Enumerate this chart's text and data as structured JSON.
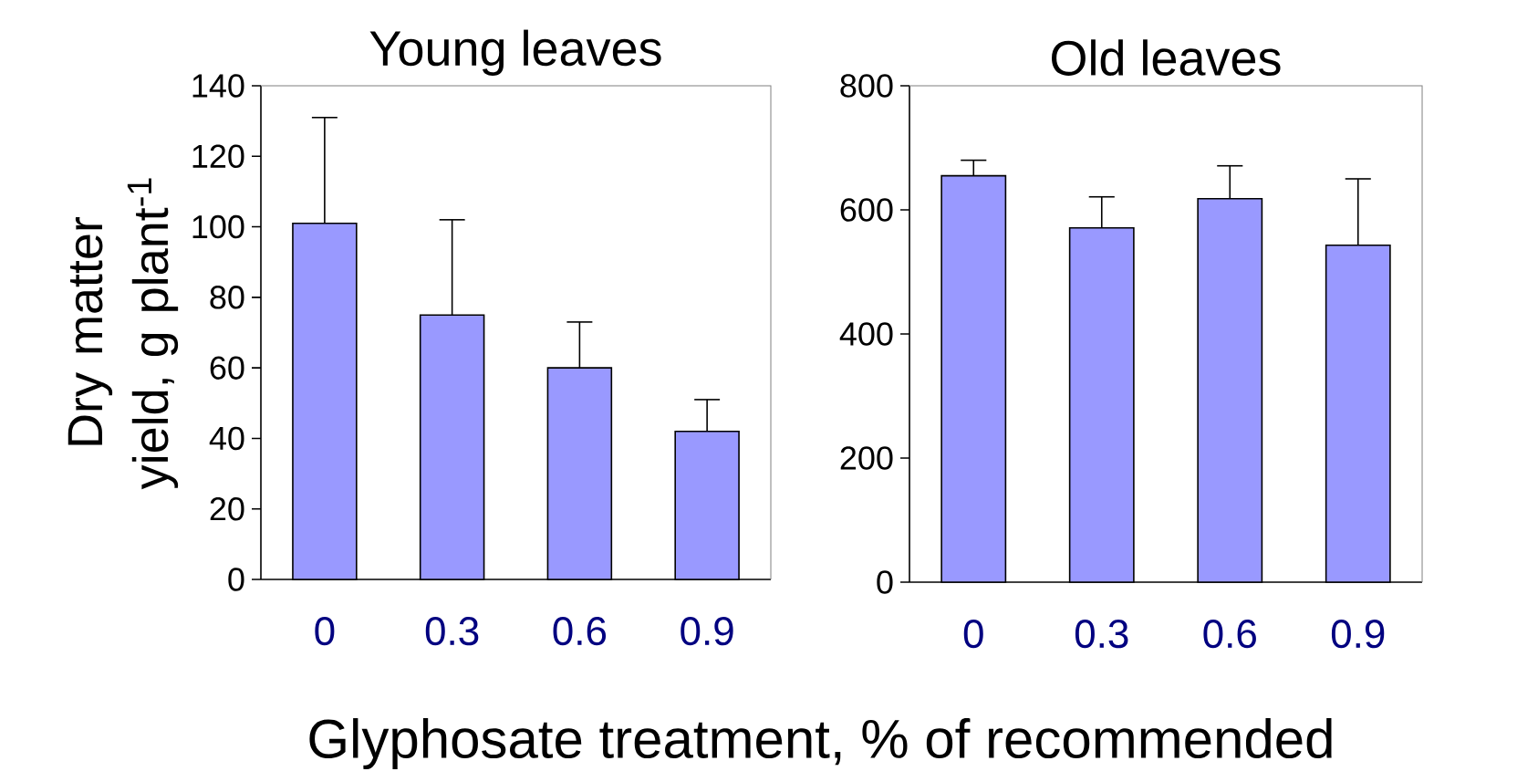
{
  "chart_data": [
    {
      "type": "bar",
      "title": "Young leaves",
      "ylabel": "Dry matter yield, g plant$^{-1}$",
      "categories": [
        "0",
        "0.3",
        "0.6",
        "0.9"
      ],
      "values": [
        101,
        75,
        60,
        42
      ],
      "errors": [
        [
          101,
          131
        ],
        [
          75,
          102
        ],
        [
          60,
          73
        ],
        [
          42,
          51
        ]
      ],
      "color": "#9999ff",
      "ylim": [
        0,
        140
      ],
      "yticks": [
        0,
        20,
        40,
        60,
        80,
        100,
        120,
        140
      ]
    },
    {
      "type": "bar",
      "title": "Old leaves",
      "xlabel": "Glyphosate treatment, % of recommended",
      "categories": [
        "0",
        "0.3",
        "0.6",
        "0.9"
      ],
      "values": [
        655,
        571,
        618,
        543
      ],
      "errors": [
        [
          655,
          680
        ],
        [
          571,
          621
        ],
        [
          618,
          671
        ],
        [
          543,
          650
        ]
      ],
      "color": "#9999ff",
      "ylim": [
        0,
        800
      ],
      "yticks": [
        0,
        200,
        400,
        600,
        800
      ]
    }
  ]
}
